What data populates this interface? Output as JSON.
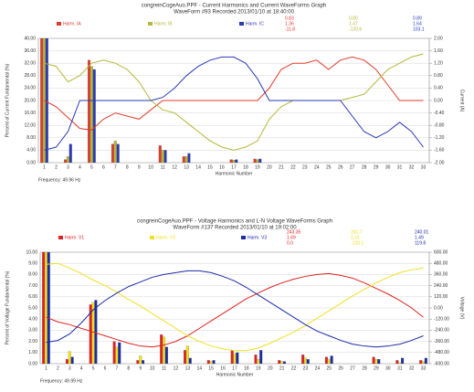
{
  "chart_data": [
    {
      "type": "bar",
      "title": "congreinCogeAuo.PPF - Current Harmonics and Current WaveForms Graph",
      "subtitle": "WaveForm #93 Recorded 2013/01/10 at 18:40:00",
      "x_label": "Harmonic Number",
      "y_label": "Percent of Current Fundamental (%)",
      "y2_label": "Current (A)",
      "footer": "Frequency: 49.96 Hz",
      "categories": [
        "1",
        "2",
        "3",
        "4",
        "5",
        "6",
        "7",
        "8",
        "9",
        "10",
        "11",
        "12",
        "13",
        "14",
        "15",
        "16",
        "17",
        "18",
        "19",
        "20",
        "21",
        "22",
        "23",
        "24",
        "25",
        "26",
        "27",
        "28",
        "29",
        "30",
        "31",
        "32",
        "33"
      ],
      "ylim": [
        0,
        40
      ],
      "yticks": [
        {
          "value": 0,
          "label": "0.00"
        },
        {
          "value": 4,
          "label": "4.00"
        },
        {
          "value": 8,
          "label": "8.00"
        },
        {
          "value": 12,
          "label": "12.00"
        },
        {
          "value": 16,
          "label": "16.00"
        },
        {
          "value": 20,
          "label": "20.00"
        },
        {
          "value": 24,
          "label": "24.00"
        },
        {
          "value": 28,
          "label": "28.00"
        },
        {
          "value": 32,
          "label": "32.00"
        },
        {
          "value": 36,
          "label": "36.00"
        },
        {
          "value": 40,
          "label": "40.00"
        }
      ],
      "y2lim": [
        -2,
        2
      ],
      "y2ticks": [
        {
          "value": -2,
          "label": "-2.00"
        },
        {
          "value": -1.6,
          "label": "-1.60"
        },
        {
          "value": -1.2,
          "label": "-1.20"
        },
        {
          "value": -0.8,
          "label": "-0.80"
        },
        {
          "value": -0.4,
          "label": "-0.40"
        },
        {
          "value": 0,
          "label": "0.00"
        },
        {
          "value": 0.4,
          "label": "0.40"
        },
        {
          "value": 0.8,
          "label": "0.80"
        },
        {
          "value": 1.2,
          "label": "1.20"
        },
        {
          "value": 1.6,
          "label": "1.60"
        },
        {
          "value": 2,
          "label": "2.00"
        }
      ],
      "grid": true,
      "series": [
        {
          "type": "bar",
          "name": "Harm. IA",
          "color": "#e03a2a",
          "readings": [
            "0.83",
            "1.36",
            "-11.8"
          ],
          "values": [
            40,
            0,
            1,
            0,
            33,
            0,
            6,
            0,
            0,
            0,
            5.5,
            0,
            2,
            0,
            0,
            0,
            1,
            0,
            1.2,
            0,
            0,
            0,
            0,
            0,
            0,
            0,
            0,
            0,
            0,
            0,
            0,
            0,
            0
          ]
        },
        {
          "type": "bar",
          "name": "Harm. IB",
          "color": "#b5b83a",
          "readings": [
            "0.80",
            "1.47",
            "-120.6"
          ],
          "values": [
            40,
            0,
            2,
            0,
            31,
            0,
            7,
            0,
            0,
            0,
            4,
            0,
            2,
            0,
            0,
            0,
            0.8,
            0,
            1,
            0,
            0,
            0,
            0,
            0,
            0,
            0,
            0,
            0,
            0,
            0,
            0,
            0,
            0
          ]
        },
        {
          "type": "bar",
          "name": "Harm. IC",
          "color": "#2a3ab5",
          "readings": [
            "0.89",
            "1.64",
            "103.1"
          ],
          "values": [
            40,
            0,
            6,
            0,
            30,
            0,
            6,
            0,
            0,
            0,
            4,
            0,
            3,
            0,
            0,
            0,
            1,
            0,
            1.2,
            0,
            0,
            0,
            0,
            0,
            0,
            0,
            0,
            0,
            0,
            0,
            0,
            0,
            0
          ]
        },
        {
          "type": "line",
          "axis": "y2",
          "color": "#e03a2a",
          "values": [
            0,
            -0.2,
            -0.55,
            -0.9,
            -0.95,
            -0.6,
            -0.4,
            -0.5,
            -0.6,
            -0.3,
            0,
            0,
            0,
            0,
            0,
            0,
            0,
            0,
            0,
            0.4,
            1.0,
            1.2,
            1.2,
            1.3,
            1.0,
            1.3,
            1.4,
            1.3,
            1.0,
            0.5,
            0,
            0,
            0
          ]
        },
        {
          "type": "line",
          "axis": "y2",
          "color": "#b5b83a",
          "values": [
            1.2,
            1.1,
            0.6,
            0.8,
            1.2,
            1.3,
            1.2,
            1.0,
            0.6,
            0,
            -0.3,
            -0.4,
            -0.7,
            -1.0,
            -1.3,
            -1.5,
            -1.6,
            -1.5,
            -1.3,
            -0.6,
            -0.2,
            0,
            0,
            0,
            0,
            0,
            0.1,
            0.2,
            0.6,
            1.0,
            1.2,
            1.4,
            1.5
          ]
        },
        {
          "type": "line",
          "axis": "y2",
          "color": "#2a3ab5",
          "values": [
            -1.6,
            -1.5,
            -1.0,
            0,
            0,
            0,
            0,
            0,
            0,
            0,
            0.1,
            0.4,
            0.8,
            1.1,
            1.3,
            1.4,
            1.4,
            1.2,
            0.7,
            0,
            0,
            0,
            0,
            0,
            0,
            0,
            -0.5,
            -1.0,
            -1.2,
            -1.0,
            -0.7,
            -1.0,
            -1.5
          ]
        }
      ]
    },
    {
      "type": "bar",
      "title": "congreinCogeAuo.PPF - Voltage Harmonics and L-N Voltage WaveForms Graph",
      "subtitle": "WaveForm #137 Recorded 2013/01/10 at 19:02:00",
      "x_label": "Harmonic Number",
      "y_label": "Percent of Voltage Fundamental (%)",
      "y2_label": "Voltage (V)",
      "footer": "Frequency: 49.99 Hz",
      "categories": [
        "1",
        "2",
        "3",
        "4",
        "5",
        "6",
        "7",
        "8",
        "9",
        "10",
        "11",
        "12",
        "13",
        "14",
        "15",
        "16",
        "17",
        "18",
        "19",
        "20",
        "21",
        "22",
        "23",
        "24",
        "25",
        "26",
        "27",
        "28",
        "29",
        "30",
        "31",
        "32",
        "33"
      ],
      "ylim": [
        0,
        10
      ],
      "yticks": [
        {
          "value": 0,
          "label": "0.00"
        },
        {
          "value": 1,
          "label": "1.00"
        },
        {
          "value": 2,
          "label": "2.00"
        },
        {
          "value": 3,
          "label": "3.00"
        },
        {
          "value": 4,
          "label": "4.00"
        },
        {
          "value": 5,
          "label": "5.00"
        },
        {
          "value": 6,
          "label": "6.00"
        },
        {
          "value": 7,
          "label": "7.00"
        },
        {
          "value": 8,
          "label": "8.00"
        },
        {
          "value": 9,
          "label": "9.00"
        },
        {
          "value": 10,
          "label": "10.00"
        }
      ],
      "y2lim": [
        -600,
        600
      ],
      "y2ticks": [
        {
          "value": -600,
          "label": "-600.00"
        },
        {
          "value": -480,
          "label": "-480.00"
        },
        {
          "value": -360,
          "label": "-360.00"
        },
        {
          "value": -240,
          "label": "-240.00"
        },
        {
          "value": -120,
          "label": "-120.00"
        },
        {
          "value": 0,
          "label": "0.00"
        },
        {
          "value": 120,
          "label": "120.00"
        },
        {
          "value": 240,
          "label": "240.00"
        },
        {
          "value": 360,
          "label": "360.00"
        },
        {
          "value": 480,
          "label": "480.00"
        },
        {
          "value": 600,
          "label": "600.00"
        }
      ],
      "grid": true,
      "series": [
        {
          "type": "bar",
          "name": "Harm. V1",
          "color": "#e02020",
          "readings": [
            "243.35",
            "1.69",
            "0.0"
          ],
          "values": [
            10,
            0,
            0.4,
            0,
            5.3,
            0,
            2.0,
            0,
            0.3,
            0,
            2.6,
            0,
            1.2,
            0,
            0.3,
            0,
            1.2,
            0,
            0.8,
            0,
            0.3,
            0,
            0.8,
            0,
            0.6,
            0,
            0,
            0,
            0.6,
            0,
            0.3,
            0,
            0.3
          ]
        },
        {
          "type": "bar",
          "name": "Harm. V2",
          "color": "#f0e020",
          "readings": [
            "241.7",
            "1.41",
            "-120.1"
          ],
          "values": [
            10,
            0,
            1.1,
            0,
            5.5,
            0,
            1.5,
            0,
            0.7,
            0,
            2.4,
            0,
            1.6,
            0,
            0.2,
            0,
            0.9,
            0,
            0.4,
            0,
            0.2,
            0,
            0.5,
            0,
            0.4,
            0,
            0,
            0,
            0.4,
            0,
            0.1,
            0,
            0.2
          ]
        },
        {
          "type": "bar",
          "name": "Harm. V3",
          "color": "#1a2aa8",
          "readings": [
            "240.01",
            "1.49",
            "119.8"
          ],
          "values": [
            10,
            0,
            0.6,
            0,
            5.7,
            0,
            1.9,
            0,
            0.3,
            0,
            1.5,
            0,
            0.5,
            0,
            0.3,
            0,
            1.0,
            0,
            1.2,
            0,
            0.2,
            0,
            0.4,
            0,
            0.7,
            0,
            0,
            0,
            0.4,
            0,
            0.5,
            0,
            0.5
          ]
        },
        {
          "type": "line",
          "axis": "y2",
          "color": "#e02020",
          "values": [
            -100,
            -150,
            -180,
            -220,
            -260,
            -300,
            -340,
            -380,
            -410,
            -420,
            -400,
            -360,
            -300,
            -220,
            -140,
            -60,
            20,
            100,
            160,
            220,
            270,
            310,
            340,
            360,
            370,
            350,
            320,
            270,
            210,
            150,
            80,
            0,
            -100
          ]
        },
        {
          "type": "line",
          "axis": "y2",
          "color": "#f0e020",
          "values": [
            470,
            480,
            430,
            370,
            300,
            240,
            170,
            90,
            20,
            -60,
            -140,
            -220,
            -300,
            -360,
            -410,
            -440,
            -460,
            -460,
            -430,
            -380,
            -320,
            -260,
            -190,
            -110,
            -30,
            50,
            130,
            200,
            270,
            330,
            380,
            410,
            430
          ]
        },
        {
          "type": "line",
          "axis": "y2",
          "color": "#1a2aa8",
          "values": [
            -370,
            -350,
            -280,
            -160,
            -20,
            80,
            160,
            230,
            280,
            330,
            360,
            380,
            400,
            400,
            380,
            340,
            290,
            220,
            140,
            60,
            -20,
            -100,
            -180,
            -250,
            -300,
            -350,
            -390,
            -410,
            -420,
            -410,
            -390,
            -350,
            -300
          ]
        }
      ]
    }
  ]
}
